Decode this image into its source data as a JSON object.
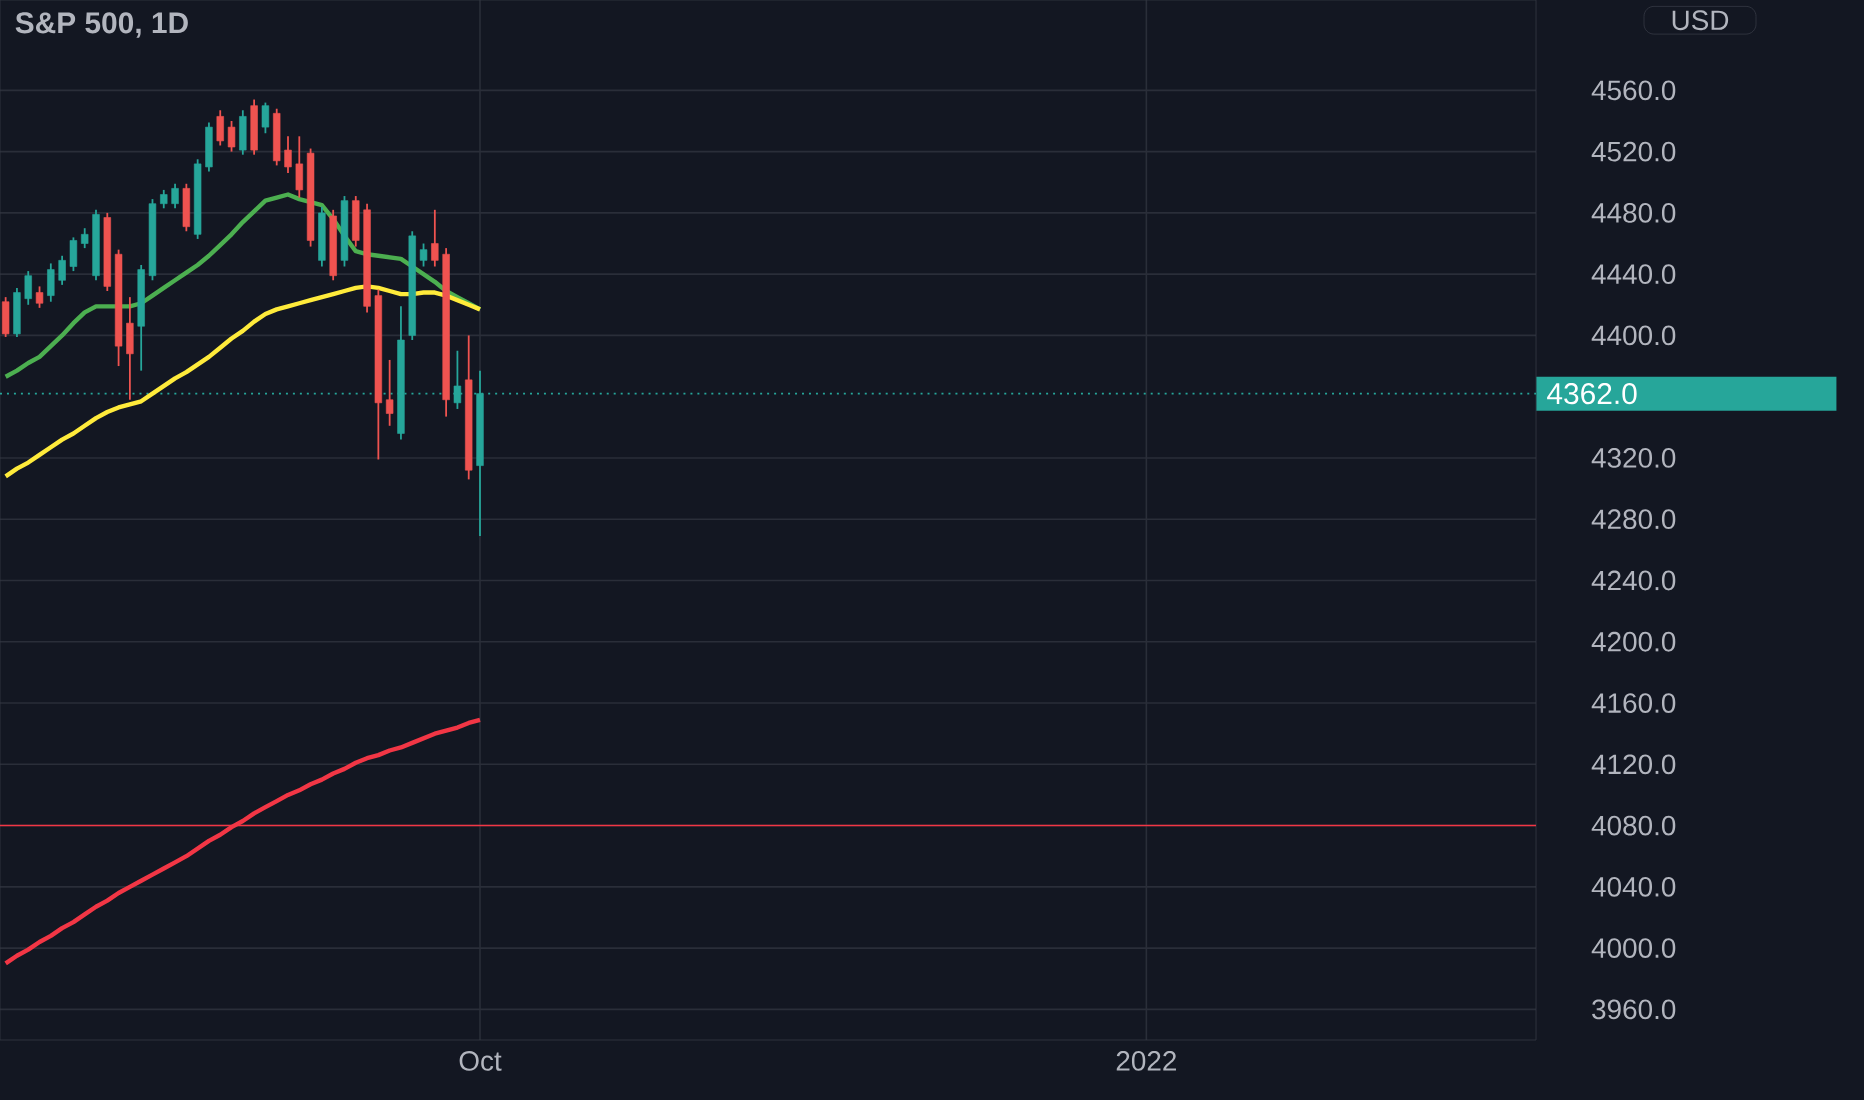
{
  "chart_data": {
    "type": "candlestick",
    "title": "S&P 500, 1D",
    "annotations": [
      "USD"
    ],
    "categories": [
      null,
      null,
      null,
      null,
      null,
      null,
      null,
      null,
      null,
      null,
      null,
      null,
      null,
      null,
      null,
      null,
      null,
      null,
      null,
      null,
      null,
      null,
      null,
      null,
      null,
      null,
      null,
      null,
      null,
      null,
      null,
      null,
      null,
      null,
      null,
      null,
      null,
      null,
      null,
      null,
      null,
      null,
      "Oct",
      null,
      null,
      null,
      null,
      null,
      null,
      null,
      null,
      null,
      null,
      null,
      null,
      null,
      null,
      null,
      null,
      null,
      null,
      null,
      null,
      null,
      null,
      null,
      null,
      null,
      null,
      null,
      null,
      null,
      null,
      null,
      null,
      null,
      null,
      null,
      null,
      null,
      null,
      null,
      null,
      null,
      null,
      null,
      null,
      null,
      null,
      null,
      null,
      null,
      null,
      null,
      null,
      null,
      null,
      null,
      null,
      null,
      null,
      "2022",
      null,
      null,
      null,
      null,
      null,
      null,
      null,
      null,
      null,
      null,
      null,
      null,
      null,
      null,
      null,
      null,
      null,
      null,
      null,
      null,
      null,
      null,
      null,
      null,
      null,
      null,
      null,
      null,
      null,
      null,
      null,
      null,
      null,
      null
    ],
    "ohlc": [
      [
        4422,
        4425,
        4399,
        4401
      ],
      [
        4401,
        4431,
        4399,
        4428
      ],
      [
        4424,
        4442,
        4420,
        4439
      ],
      [
        4428,
        4432,
        4418,
        4421
      ],
      [
        4426,
        4447,
        4422,
        4443
      ],
      [
        4436,
        4452,
        4433,
        4449
      ],
      [
        4445,
        4464,
        4442,
        4462
      ],
      [
        4460,
        4470,
        4457,
        4466
      ],
      [
        4439,
        4482,
        4436,
        4479
      ],
      [
        4477,
        4480,
        4429,
        4432
      ],
      [
        4453,
        4456,
        4380,
        4393
      ],
      [
        4408,
        4425,
        4358,
        4388
      ],
      [
        4406,
        4446,
        4377,
        4443
      ],
      [
        4439,
        4489,
        4436,
        4486
      ],
      [
        4486,
        4495,
        4483,
        4492
      ],
      [
        4486,
        4499,
        4483,
        4496
      ],
      [
        4496,
        4499,
        4468,
        4471
      ],
      [
        4466,
        4515,
        4463,
        4512
      ],
      [
        4510,
        4539,
        4507,
        4536
      ],
      [
        4543,
        4547,
        4524,
        4527
      ],
      [
        4536,
        4540,
        4520,
        4523
      ],
      [
        4521,
        4547,
        4518,
        4543
      ],
      [
        4550,
        4554,
        4518,
        4521
      ],
      [
        4536,
        4552,
        4532,
        4550
      ],
      [
        4545,
        4548,
        4511,
        4514
      ],
      [
        4521,
        4530,
        4506,
        4510
      ],
      [
        4512,
        4530,
        4490,
        4495
      ],
      [
        4519,
        4522,
        4458,
        4462
      ],
      [
        4449,
        4484,
        4445,
        4480
      ],
      [
        4478,
        4482,
        4436,
        4439
      ],
      [
        4449,
        4491,
        4445,
        4488
      ],
      [
        4488,
        4491,
        4458,
        4462
      ],
      [
        4482,
        4486,
        4415,
        4419
      ],
      [
        4426,
        4430,
        4319,
        4356
      ],
      [
        4358,
        4384,
        4341,
        4349
      ],
      [
        4336,
        4419,
        4332,
        4397
      ],
      [
        4400,
        4468,
        4397,
        4465
      ],
      [
        4449,
        4460,
        4445,
        4456
      ],
      [
        4460,
        4482,
        4445,
        4449
      ],
      [
        4453,
        4457,
        4347,
        4358
      ],
      [
        4356,
        4390,
        4352,
        4367
      ],
      [
        4371,
        4400,
        4306,
        4312
      ],
      [
        4315,
        4377,
        4269,
        4362
      ],
      null,
      null,
      null,
      null,
      null,
      null,
      null,
      null,
      null,
      null,
      null,
      null,
      null,
      null,
      null,
      null,
      null,
      null,
      null,
      null,
      null,
      null,
      null,
      null,
      null,
      null,
      null,
      null,
      null,
      null,
      null,
      null,
      null,
      null,
      null,
      null,
      null,
      null,
      null,
      null,
      null,
      null,
      null,
      null,
      null,
      null,
      null,
      null,
      null,
      null,
      null,
      null,
      null,
      null,
      null,
      null,
      null,
      null,
      null,
      null,
      null,
      null,
      null,
      null,
      null,
      null,
      null,
      null,
      null,
      null,
      null,
      null,
      null,
      null,
      null,
      null,
      null,
      null,
      null,
      null,
      null,
      null,
      null,
      null,
      null,
      null,
      null,
      null,
      null,
      null,
      null,
      null,
      null
    ],
    "colors": [
      "#ef5350",
      "#26a69a",
      "#26a69a",
      "#ef5350",
      "#26a69a",
      "#26a69a",
      "#26a69a",
      "#26a69a",
      "#26a69a",
      "#ef5350",
      "#ef5350",
      "#ef5350",
      "#26a69a",
      "#26a69a",
      "#26a69a",
      "#26a69a",
      "#ef5350",
      "#26a69a",
      "#26a69a",
      "#ef5350",
      "#ef5350",
      "#26a69a",
      "#ef5350",
      "#26a69a",
      "#ef5350",
      "#ef5350",
      "#ef5350",
      "#ef5350",
      "#26a69a",
      "#ef5350",
      "#26a69a",
      "#ef5350",
      "#ef5350",
      "#ef5350",
      "#ef5350",
      "#26a69a",
      "#26a69a",
      "#26a69a",
      "#ef5350",
      "#ef5350",
      "#26a69a",
      "#ef5350",
      "#26a69a",
      null,
      null,
      null,
      null,
      null,
      null,
      null,
      null,
      null,
      null,
      null,
      null,
      null,
      null,
      null,
      null,
      null,
      null,
      null,
      null,
      null,
      null,
      null,
      null,
      null,
      null,
      null,
      null,
      null,
      null,
      null,
      null,
      null,
      null,
      null,
      null,
      null,
      null,
      null,
      null,
      null,
      null,
      null,
      null,
      null,
      null,
      null,
      null,
      null,
      null,
      null,
      null,
      null,
      null,
      null,
      null,
      null,
      null,
      null,
      null,
      null,
      null,
      null,
      null,
      null,
      null,
      null,
      null,
      null,
      null,
      null,
      null,
      null,
      null,
      null,
      null,
      null,
      null,
      null,
      null,
      null,
      null,
      null,
      null,
      null,
      null,
      null,
      null,
      null,
      null,
      null,
      null,
      null
    ],
    "series": [
      {
        "type": "line",
        "color": "#4caf50",
        "values": [
          4373,
          4377,
          4382,
          4386,
          4393,
          4400,
          4408,
          4415,
          4419,
          4419,
          4419,
          4419,
          4421,
          4426,
          4431,
          4436,
          4441,
          4446,
          4452,
          4459,
          4466,
          4474,
          4481,
          4488,
          4490,
          4492,
          4489,
          4487,
          4485,
          4476,
          4465,
          4455,
          4453,
          4452,
          4451,
          4450,
          4445,
          4440,
          4435,
          4429,
          4425,
          4421,
          4417,
          null,
          null,
          null,
          null,
          null,
          null,
          null,
          null,
          null,
          null,
          null,
          null,
          null,
          null,
          null,
          null,
          null,
          null,
          null,
          null,
          null,
          null,
          null,
          null,
          null,
          null,
          null,
          null,
          null,
          null,
          null,
          null,
          null,
          null,
          null,
          null,
          null,
          null,
          null,
          null,
          null,
          null,
          null,
          null,
          null,
          null,
          null,
          null,
          null,
          null,
          null,
          null,
          null,
          null,
          null,
          null,
          null,
          null,
          null,
          null,
          null,
          null,
          null,
          null,
          null,
          null,
          null,
          null,
          null,
          null,
          null,
          null,
          null,
          null,
          null,
          null,
          null,
          null,
          null,
          null,
          null,
          null,
          null,
          null,
          null,
          null,
          null,
          null,
          null,
          null,
          null,
          null,
          null
        ]
      },
      {
        "type": "line",
        "color": "#ffeb3b",
        "values": [
          4308,
          4313,
          4317,
          4322,
          4327,
          4332,
          4336,
          4341,
          4346,
          4350,
          4353,
          4355,
          4357,
          4362,
          4367,
          4372,
          4376,
          4381,
          4386,
          4392,
          4398,
          4403,
          4409,
          4414,
          4417,
          4419,
          4421,
          4423,
          4425,
          4427,
          4429,
          4431,
          4432,
          4431,
          4429,
          4427,
          4427,
          4428,
          4428,
          4426,
          4423,
          4420,
          4417,
          null,
          null,
          null,
          null,
          null,
          null,
          null,
          null,
          null,
          null,
          null,
          null,
          null,
          null,
          null,
          null,
          null,
          null,
          null,
          null,
          null,
          null,
          null,
          null,
          null,
          null,
          null,
          null,
          null,
          null,
          null,
          null,
          null,
          null,
          null,
          null,
          null,
          null,
          null,
          null,
          null,
          null,
          null,
          null,
          null,
          null,
          null,
          null,
          null,
          null,
          null,
          null,
          null,
          null,
          null,
          null,
          null,
          null,
          null,
          null,
          null,
          null,
          null,
          null,
          null,
          null,
          null,
          null,
          null,
          null,
          null,
          null,
          null,
          null,
          null,
          null,
          null,
          null,
          null,
          null,
          null,
          null,
          null,
          null,
          null,
          null,
          null,
          null,
          null,
          null,
          null,
          null,
          null
        ]
      },
      {
        "type": "line",
        "color": "#f23645",
        "values": [
          3990,
          3995,
          3999,
          4004,
          4008,
          4013,
          4017,
          4022,
          4027,
          4031,
          4036,
          4040,
          4044,
          4048,
          4052,
          4056,
          4060,
          4065,
          4070,
          4074,
          4079,
          4083,
          4088,
          4092,
          4096,
          4100,
          4103,
          4107,
          4110,
          4114,
          4117,
          4121,
          4124,
          4126,
          4129,
          4131,
          4134,
          4137,
          4140,
          4142,
          4144,
          4147,
          4149,
          null,
          null,
          null,
          null,
          null,
          null,
          null,
          null,
          null,
          null,
          null,
          null,
          null,
          null,
          null,
          null,
          null,
          null,
          null,
          null,
          null,
          null,
          null,
          null,
          null,
          null,
          null,
          null,
          null,
          null,
          null,
          null,
          null,
          null,
          null,
          null,
          null,
          null,
          null,
          null,
          null,
          null,
          null,
          null,
          null,
          null,
          null,
          null,
          null,
          null,
          null,
          null,
          null,
          null,
          null,
          null,
          null,
          null,
          null,
          null,
          null,
          null,
          null,
          null,
          null,
          null,
          null,
          null,
          null,
          null,
          null,
          null,
          null,
          null,
          null,
          null,
          null,
          null,
          null,
          null,
          null,
          null,
          null,
          null,
          null,
          null,
          null,
          null,
          null,
          null,
          null,
          null,
          null
        ]
      }
    ],
    "ref_lines": [
      {
        "axis": "y",
        "value": 4362,
        "label": "4362.0",
        "color": "#26a69a",
        "line_style": "dotted"
      },
      {
        "axis": "y",
        "value": 4080,
        "color": "#f23645",
        "line_style": "solid"
      }
    ],
    "ylim": [
      3940,
      4619
    ],
    "yticks": [
      {
        "value": 3960,
        "label": "3960.0"
      },
      {
        "value": 4000,
        "label": "4000.0"
      },
      {
        "value": 4040,
        "label": "4040.0"
      },
      {
        "value": 4080,
        "label": "4080.0"
      },
      {
        "value": 4120,
        "label": "4120.0"
      },
      {
        "value": 4160,
        "label": "4160.0"
      },
      {
        "value": 4200,
        "label": "4200.0"
      },
      {
        "value": 4240,
        "label": "4240.0"
      },
      {
        "value": 4280,
        "label": "4280.0"
      },
      {
        "value": 4320,
        "label": "4320.0"
      },
      {
        "value": 4400,
        "label": "4400.0"
      },
      {
        "value": 4440,
        "label": "4440.0"
      },
      {
        "value": 4480,
        "label": "4480.0"
      },
      {
        "value": 4520,
        "label": "4520.0"
      },
      {
        "value": 4560,
        "label": "4560.0"
      }
    ],
    "grid": true
  }
}
